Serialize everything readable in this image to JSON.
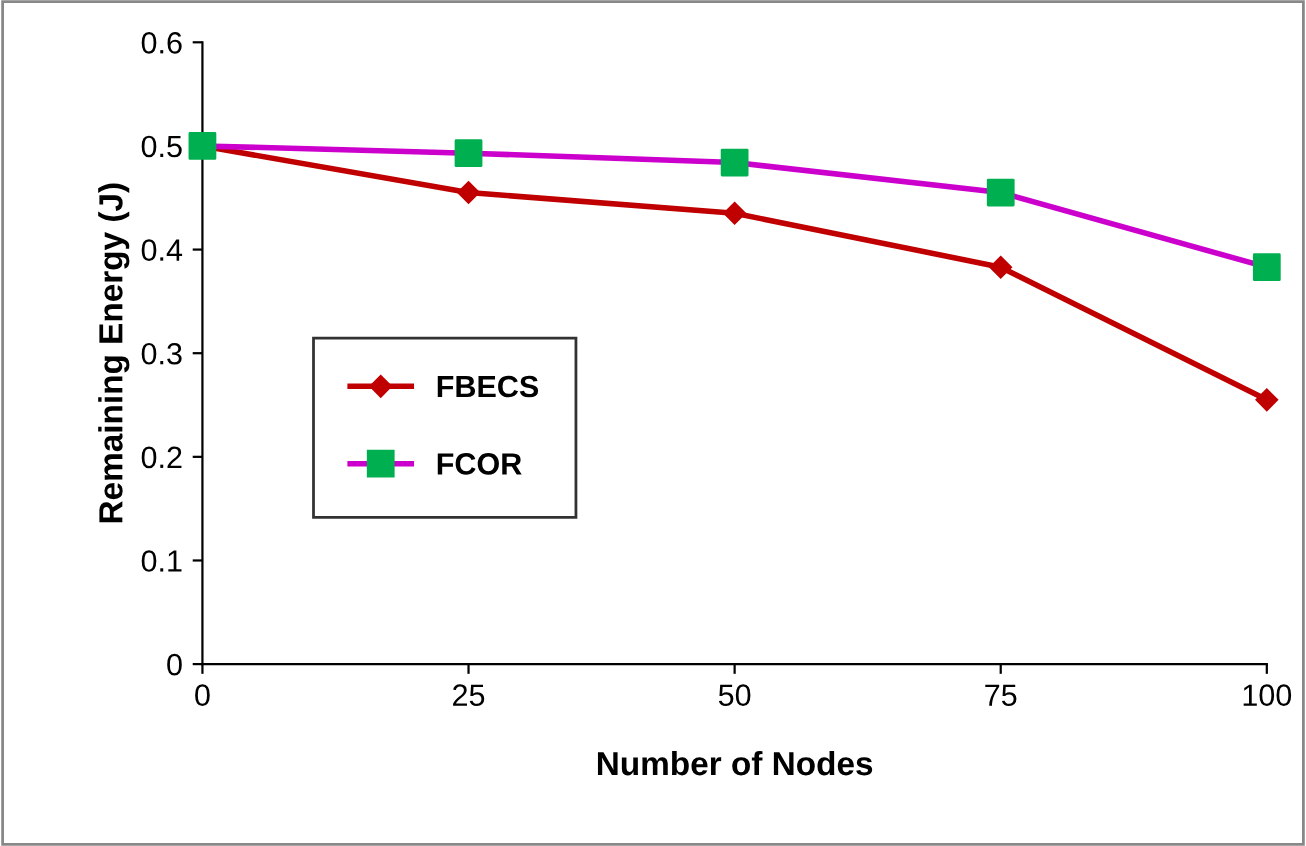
{
  "chart_data": {
    "type": "line",
    "xlabel": "Number of Nodes",
    "ylabel": "Remaining Energy (J)",
    "x": [
      0,
      25,
      50,
      75,
      100
    ],
    "series": [
      {
        "name": "FBECS",
        "color": "#c00000",
        "marker": "diamond",
        "values": [
          0.5,
          0.455,
          0.435,
          0.383,
          0.255
        ]
      },
      {
        "name": "FCOR",
        "color": "#cc00cc",
        "marker": "square",
        "colors": [
          "#00b050",
          "#00b050",
          "#00b050",
          "#00b050",
          "#00b050"
        ],
        "values": [
          0.5,
          0.493,
          0.484,
          0.455,
          0.383
        ]
      }
    ],
    "xlim": [
      0,
      100
    ],
    "xticks": [
      0,
      25,
      50,
      75,
      100
    ],
    "ylim": [
      0,
      0.6
    ],
    "yticks": [
      0,
      0.1,
      0.2,
      0.3,
      0.4,
      0.5,
      0.6
    ],
    "grid": false,
    "legend": "center left",
    "line_style": "solid"
  }
}
